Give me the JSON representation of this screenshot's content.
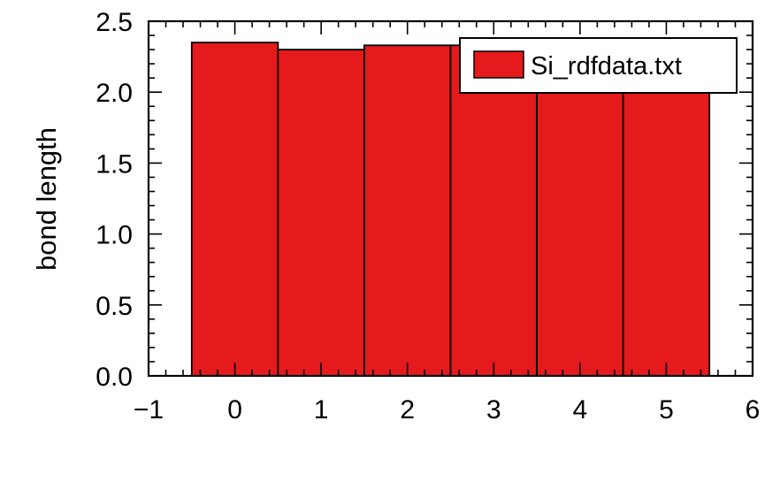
{
  "chart_data": {
    "type": "bar",
    "title": "",
    "xlabel": "",
    "ylabel": "bond length",
    "x": [
      0,
      1,
      2,
      3,
      4,
      5
    ],
    "series": [
      {
        "name": "Si_rdfdata.txt",
        "color": "#e41a1c",
        "values": [
          2.35,
          2.3,
          2.33,
          2.33,
          2.33,
          2.33
        ]
      }
    ],
    "xlim": [
      -1,
      6
    ],
    "ylim": [
      0.0,
      2.5
    ],
    "xticks": [
      "−1",
      "0",
      "1",
      "2",
      "3",
      "4",
      "5",
      "6"
    ],
    "yticks": [
      "0.0",
      "0.5",
      "1.0",
      "1.5",
      "2.0",
      "2.5"
    ],
    "grid": false,
    "legend_position": "top-right"
  }
}
